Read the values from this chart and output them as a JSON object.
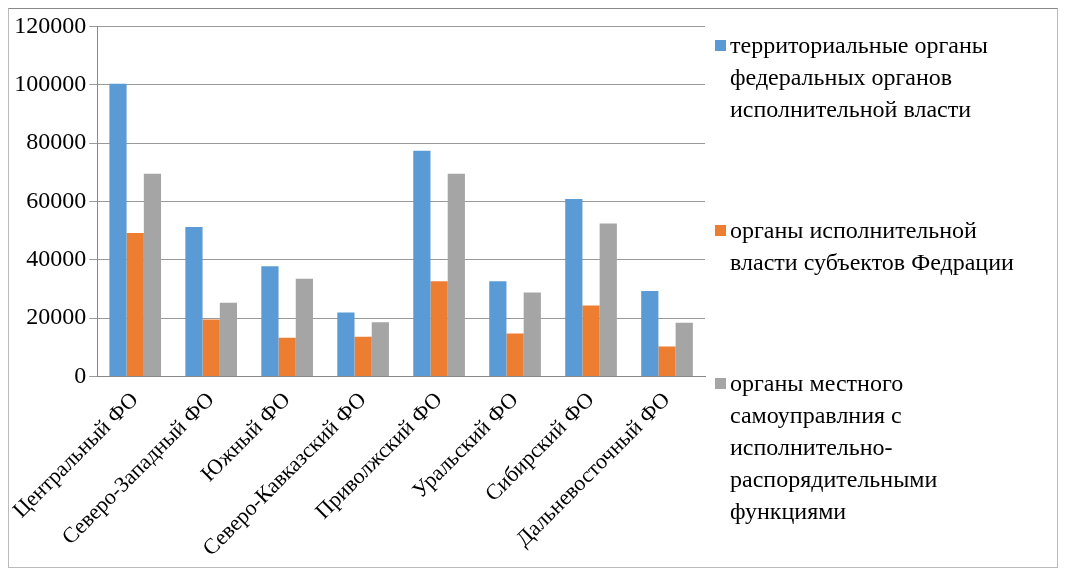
{
  "chart_data": {
    "type": "bar",
    "categories": [
      "Центральный ФО",
      "Северо-Западный ФО",
      "Южный ФО",
      "Северо-Кавказский ФО",
      "Приволжский ФО",
      "Уральский ФО",
      "Сибирский ФО",
      "Дальневосточный ФО"
    ],
    "series": [
      {
        "name": "территориальные органы федеральных органов исполнительной власти",
        "color": "#5b9bd5",
        "values": [
          100300,
          51200,
          37800,
          21900,
          77400,
          32600,
          60800,
          29300
        ]
      },
      {
        "name": "органы исполнительной власти субъектов Федрации",
        "color": "#ed7d31",
        "values": [
          49200,
          19500,
          13300,
          13600,
          32600,
          14700,
          24300,
          10300
        ]
      },
      {
        "name": "органы местного самоуправлния с исполнительно-распорядительными функциями",
        "color": "#a5a5a5",
        "values": [
          69500,
          25300,
          33500,
          18600,
          69500,
          28800,
          52400,
          18400
        ]
      }
    ],
    "ylim": [
      0,
      120000
    ],
    "yticks": [
      0,
      20000,
      40000,
      60000,
      80000,
      100000,
      120000
    ],
    "grid": "y",
    "legend": "right"
  }
}
